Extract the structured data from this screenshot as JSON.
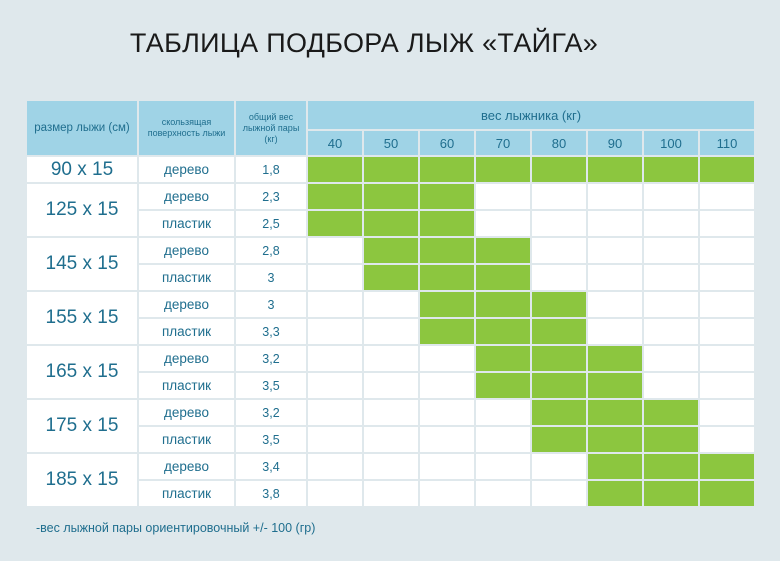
{
  "title": "ТАБЛИЦА ПОДБОРА ЛЫЖ «ТАЙГА»",
  "headers": {
    "size": "размер лыжи (см)",
    "surface": "скользящая поверхность лыжи",
    "mass": "общий вес лыжной пары (кг)",
    "skier_weight": "вес лыжника (кг)"
  },
  "weights": [
    "40",
    "50",
    "60",
    "70",
    "80",
    "90",
    "100",
    "110"
  ],
  "rows": [
    {
      "size": "90 x 15",
      "items": [
        {
          "surface": "дерево",
          "mass": "1,8",
          "range": [
            0,
            7
          ]
        }
      ]
    },
    {
      "size": "125 x 15",
      "items": [
        {
          "surface": "дерево",
          "mass": "2,3",
          "range": [
            0,
            2
          ]
        },
        {
          "surface": "пластик",
          "mass": "2,5",
          "range": [
            0,
            2
          ]
        }
      ]
    },
    {
      "size": "145 x 15",
      "items": [
        {
          "surface": "дерево",
          "mass": "2,8",
          "range": [
            1,
            3
          ]
        },
        {
          "surface": "пластик",
          "mass": "3",
          "range": [
            1,
            3
          ]
        }
      ]
    },
    {
      "size": "155 x 15",
      "items": [
        {
          "surface": "дерево",
          "mass": "3",
          "range": [
            2,
            4
          ]
        },
        {
          "surface": "пластик",
          "mass": "3,3",
          "range": [
            2,
            4
          ]
        }
      ]
    },
    {
      "size": "165 x 15",
      "items": [
        {
          "surface": "дерево",
          "mass": "3,2",
          "range": [
            3,
            5
          ]
        },
        {
          "surface": "пластик",
          "mass": "3,5",
          "range": [
            3,
            5
          ]
        }
      ]
    },
    {
      "size": "175 x 15",
      "items": [
        {
          "surface": "дерево",
          "mass": "3,2",
          "range": [
            4,
            6
          ]
        },
        {
          "surface": "пластик",
          "mass": "3,5",
          "range": [
            4,
            6
          ]
        }
      ]
    },
    {
      "size": "185 x 15",
      "items": [
        {
          "surface": "дерево",
          "mass": "3,4",
          "range": [
            5,
            7
          ]
        },
        {
          "surface": "пластик",
          "mass": "3,8",
          "range": [
            5,
            7
          ]
        }
      ]
    }
  ],
  "note": "-вес лыжной пары ориентировочный +/- 100 (гр)",
  "colors": {
    "filled": "#8cc63f",
    "header": "#9fd3e6",
    "text": "#1f6e8e",
    "background": "#dfe8ec"
  }
}
